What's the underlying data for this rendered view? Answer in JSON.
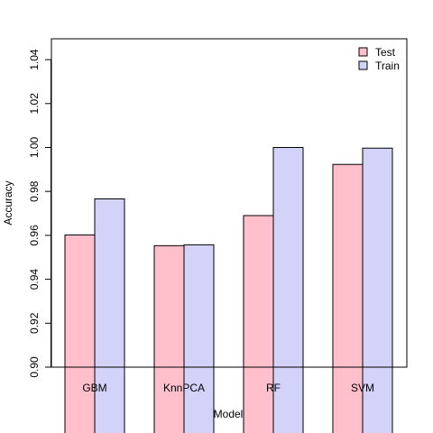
{
  "chart_data": {
    "type": "bar",
    "title": "",
    "xlabel": "Model",
    "ylabel": "Accuracy",
    "ylim": [
      0.9,
      1.04
    ],
    "yticks": [
      "0.90",
      "0.92",
      "0.94",
      "0.96",
      "0.98",
      "1.00",
      "1.02",
      "1.04"
    ],
    "categories": [
      "GBM",
      "KnnPCA",
      "RF",
      "SVM"
    ],
    "series": [
      {
        "name": "Test",
        "values": [
          0.9602,
          0.9553,
          0.969,
          0.9923
        ],
        "color": "#ffc0cb"
      },
      {
        "name": "Train",
        "values": [
          0.9766,
          0.9557,
          1.0,
          0.9997
        ],
        "color": "#d3d3f9"
      }
    ],
    "legend_position": "top-right",
    "grid": false,
    "bar_outline_color": "#000000"
  }
}
